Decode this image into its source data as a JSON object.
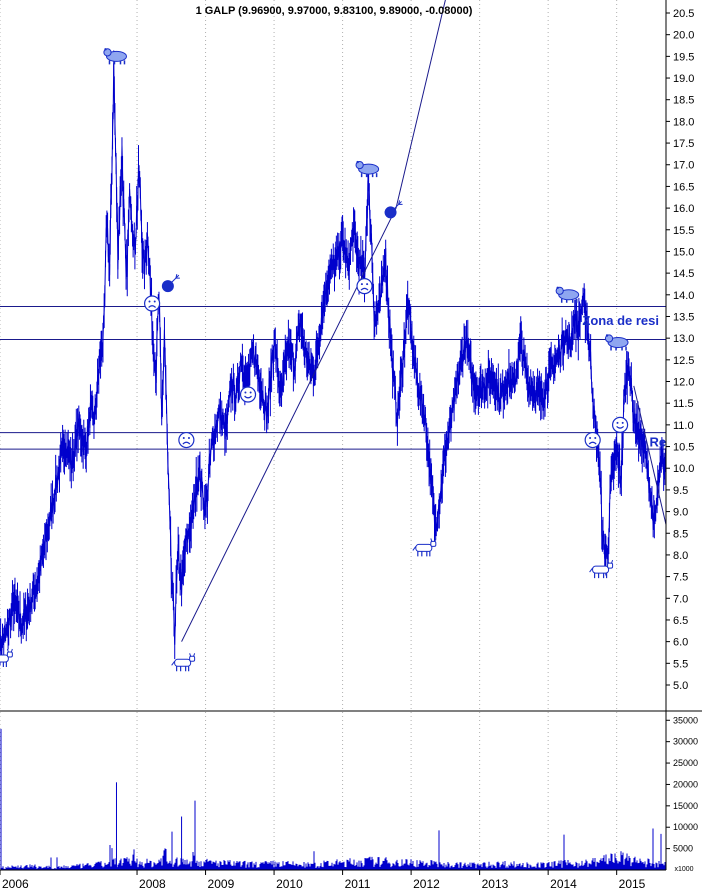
{
  "chart_data": [
    {
      "type": "line",
      "title": "1 GALP (9.96900, 9.97000, 9.83100, 9.89000, -0.08000)",
      "xlabel": "",
      "ylabel": "",
      "x_range": [
        2006.0,
        2015.72
      ],
      "ylim": [
        4.4,
        20.8
      ],
      "y_ticks": [
        5.0,
        5.5,
        6.0,
        6.5,
        7.0,
        7.5,
        8.0,
        8.5,
        9.0,
        9.5,
        10.0,
        10.5,
        11.0,
        11.5,
        12.0,
        12.5,
        13.0,
        13.5,
        14.0,
        14.5,
        15.0,
        15.5,
        16.0,
        16.5,
        17.0,
        17.5,
        18.0,
        18.5,
        19.0,
        19.5,
        20.0,
        20.5
      ],
      "x_tick_labels": [
        {
          "x": 2006.0,
          "label": "2006"
        },
        {
          "x": 2008.0,
          "label": "2008"
        },
        {
          "x": 2009.0,
          "label": "2009"
        },
        {
          "x": 2010.0,
          "label": "2010"
        },
        {
          "x": 2011.0,
          "label": "2011"
        },
        {
          "x": 2012.0,
          "label": "2012"
        },
        {
          "x": 2013.0,
          "label": "2013"
        },
        {
          "x": 2014.0,
          "label": "2014"
        },
        {
          "x": 2015.0,
          "label": "2015"
        }
      ],
      "grid": true,
      "colors": {
        "price": "#0000cc",
        "lines": "#1a1a8c",
        "icons": "#1a2ec8",
        "label": "#1a2ec8"
      },
      "series": [
        {
          "x": [
            2006.0,
            2006.1,
            2006.2,
            2006.32,
            2006.42,
            2006.55,
            2006.7,
            2006.85,
            2006.95,
            2007.05,
            2007.15,
            2007.25,
            2007.32,
            2007.38,
            2007.45,
            2007.52,
            2007.56,
            2007.6,
            2007.66,
            2007.72,
            2007.78,
            2007.84,
            2007.9,
            2007.96,
            2008.03,
            2008.1,
            2008.16,
            2008.22,
            2008.28,
            2008.32,
            2008.36,
            2008.4,
            2008.45,
            2008.5,
            2008.55,
            2008.6,
            2008.65,
            2008.72,
            2008.8,
            2008.9,
            2009.0,
            2009.1,
            2009.2,
            2009.3,
            2009.38,
            2009.45,
            2009.52,
            2009.6,
            2009.7,
            2009.8,
            2009.9,
            2010.0,
            2010.1,
            2010.2,
            2010.3,
            2010.38,
            2010.45,
            2010.52,
            2010.6,
            2010.7,
            2010.8,
            2010.9,
            2011.0,
            2011.08,
            2011.16,
            2011.24,
            2011.32,
            2011.37,
            2011.42,
            2011.47,
            2011.55,
            2011.62,
            2011.7,
            2011.75,
            2011.8,
            2011.88,
            2011.95,
            2012.03,
            2012.1,
            2012.2,
            2012.28,
            2012.35,
            2012.42,
            2012.5,
            2012.6,
            2012.7,
            2012.8,
            2012.9,
            2013.0,
            2013.1,
            2013.2,
            2013.3,
            2013.4,
            2013.5,
            2013.6,
            2013.7,
            2013.8,
            2013.9,
            2014.0,
            2014.08,
            2014.16,
            2014.24,
            2014.32,
            2014.38,
            2014.44,
            2014.5,
            2014.56,
            2014.62,
            2014.68,
            2014.74,
            2014.8,
            2014.86,
            2014.92,
            2015.0,
            2015.06,
            2015.12,
            2015.18,
            2015.24,
            2015.32,
            2015.4,
            2015.48,
            2015.55,
            2015.6,
            2015.66,
            2015.72
          ],
          "values": [
            5.9,
            6.2,
            6.9,
            6.4,
            6.8,
            7.4,
            8.6,
            9.9,
            10.6,
            10.1,
            11.0,
            10.4,
            11.3,
            11.1,
            12.4,
            13.2,
            15.8,
            14.4,
            19.2,
            15.0,
            17.3,
            14.2,
            16.4,
            15.0,
            16.8,
            14.5,
            15.5,
            13.2,
            12.2,
            14.0,
            11.0,
            13.2,
            10.0,
            7.5,
            6.3,
            8.0,
            7.3,
            8.3,
            8.8,
            10.0,
            9.0,
            10.6,
            11.3,
            10.8,
            12.0,
            11.6,
            12.6,
            11.9,
            12.7,
            12.0,
            11.2,
            13.0,
            11.6,
            12.8,
            12.4,
            13.4,
            12.7,
            12.3,
            12.3,
            13.6,
            14.5,
            14.7,
            15.3,
            14.6,
            15.5,
            14.7,
            14.5,
            16.6,
            15.3,
            13.4,
            13.8,
            15.0,
            13.0,
            11.9,
            11.2,
            12.5,
            13.8,
            12.7,
            11.9,
            11.2,
            9.9,
            8.7,
            9.3,
            10.4,
            11.2,
            12.2,
            13.0,
            12.0,
            11.8,
            12.0,
            12.1,
            11.6,
            12.1,
            11.9,
            12.9,
            12.0,
            11.8,
            11.6,
            12.1,
            12.4,
            12.6,
            13.1,
            12.8,
            13.5,
            13.2,
            13.8,
            13.5,
            12.5,
            11.0,
            10.3,
            8.3,
            7.9,
            9.7,
            10.4,
            9.8,
            11.8,
            12.5,
            11.3,
            10.8,
            10.5,
            9.6,
            8.6,
            9.5,
            10.2,
            9.9
          ]
        },
        {
          "x": [
            2006.0,
            2006.4,
            2006.8,
            2007.2,
            2007.62,
            2007.7,
            2008.0,
            2008.3,
            2008.65,
            2008.9,
            2009.3,
            2009.7,
            2010.1,
            2010.5,
            2011.0,
            2011.4,
            2011.8,
            2012.2,
            2012.6,
            2013.0,
            2013.4,
            2013.8,
            2014.2,
            2014.6,
            2015.0,
            2015.3,
            2015.6,
            2015.72
          ],
          "values": [
            900,
            1200,
            900,
            1300,
            2100,
            20500,
            2400,
            2200,
            12500,
            2500,
            2100,
            1800,
            2000,
            1600,
            2300,
            2800,
            2500,
            2200,
            1700,
            1600,
            2000,
            1500,
            2000,
            2300,
            4200,
            2600,
            2100,
            1800
          ]
        }
      ],
      "horizontal_lines": [
        13.73,
        12.97,
        10.82,
        10.44
      ],
      "trendline": [
        {
          "x": 2008.65,
          "y": 6.0
        },
        {
          "x": 2011.78,
          "y": 16.0
        },
        {
          "x": 2012.5,
          "y": 20.8
        }
      ],
      "trendline_2": [
        {
          "x": 2015.25,
          "y": 11.9
        },
        {
          "x": 2015.72,
          "y": 8.7
        }
      ],
      "annotations": [
        {
          "text": "Zona de resi",
          "x": 2014.5,
          "y": 13.3
        },
        {
          "text": "Re",
          "x": 2015.48,
          "y": 10.5
        }
      ],
      "markers": [
        {
          "kind": "bear",
          "x": 2007.7,
          "y": 19.5
        },
        {
          "kind": "bear",
          "x": 2011.38,
          "y": 16.9
        },
        {
          "kind": "bear",
          "x": 2014.3,
          "y": 14.0
        },
        {
          "kind": "bear",
          "x": 2015.02,
          "y": 12.9
        },
        {
          "kind": "bull",
          "x": 2006.02,
          "y": 5.6
        },
        {
          "kind": "bull",
          "x": 2008.68,
          "y": 5.5
        },
        {
          "kind": "bull",
          "x": 2012.2,
          "y": 8.15
        },
        {
          "kind": "bull",
          "x": 2014.78,
          "y": 7.65
        },
        {
          "kind": "sad",
          "x": 2008.22,
          "y": 13.8
        },
        {
          "kind": "sad",
          "x": 2008.72,
          "y": 10.65
        },
        {
          "kind": "sad",
          "x": 2011.32,
          "y": 14.2
        },
        {
          "kind": "sad",
          "x": 2014.65,
          "y": 10.65
        },
        {
          "kind": "happy",
          "x": 2009.62,
          "y": 11.7
        },
        {
          "kind": "happy",
          "x": 2015.05,
          "y": 11.0
        },
        {
          "kind": "bomb",
          "x": 2008.45,
          "y": 14.2
        },
        {
          "kind": "bomb",
          "x": 2011.7,
          "y": 15.9
        }
      ]
    },
    {
      "type": "bar",
      "title": "",
      "xlabel": "",
      "ylabel": "",
      "ylim": [
        0,
        36000
      ],
      "y_ticks": [
        5000,
        10000,
        15000,
        20000,
        25000,
        30000,
        35000
      ],
      "y_tick_labels": [
        "5000",
        "10000",
        "15000",
        "20000",
        "25000",
        "30000",
        "35000"
      ],
      "scale_note": "x1000",
      "color": "#0000cc"
    }
  ]
}
